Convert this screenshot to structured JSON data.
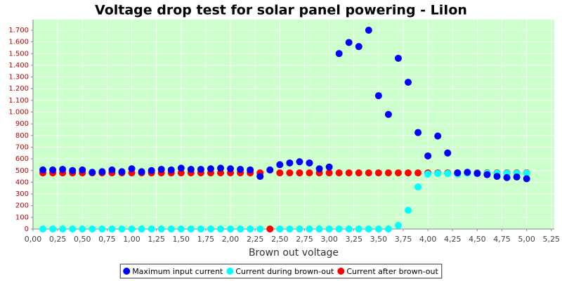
{
  "chart_data": {
    "type": "scatter",
    "title": "Voltage drop test for solar panel powering -  LiIon",
    "xlabel": "Brown out voltage",
    "x": [
      0.1,
      0.2,
      0.3,
      0.4,
      0.5,
      0.6,
      0.7,
      0.8,
      0.9,
      1.0,
      1.1,
      1.2,
      1.3,
      1.4,
      1.5,
      1.6,
      1.7,
      1.8,
      1.9,
      2.0,
      2.1,
      2.2,
      2.3,
      2.4,
      2.5,
      2.6,
      2.7,
      2.8,
      2.9,
      3.0,
      3.1,
      3.2,
      3.3,
      3.4,
      3.5,
      3.6,
      3.7,
      3.8,
      3.9,
      4.0,
      4.1,
      4.2,
      4.3,
      4.4,
      4.5,
      4.6,
      4.7,
      4.8,
      4.9,
      5.0
    ],
    "series": [
      {
        "name": "Maximum input current",
        "color": "#0000ff",
        "values": [
          505,
          505,
          510,
          500,
          505,
          485,
          490,
          505,
          490,
          515,
          490,
          500,
          510,
          505,
          520,
          510,
          510,
          515,
          520,
          515,
          510,
          505,
          450,
          505,
          550,
          565,
          575,
          565,
          515,
          530,
          1500,
          1595,
          1560,
          1700,
          1140,
          980,
          1460,
          1255,
          825,
          625,
          795,
          650,
          480,
          485,
          475,
          465,
          450,
          440,
          445,
          430
        ]
      },
      {
        "name": "Current during brown-out",
        "color": "#00ffff",
        "values": [
          0,
          0,
          0,
          0,
          0,
          0,
          0,
          0,
          0,
          0,
          0,
          0,
          0,
          0,
          0,
          0,
          0,
          0,
          0,
          0,
          0,
          0,
          0,
          null,
          0,
          0,
          0,
          0,
          0,
          0,
          0,
          0,
          0,
          0,
          0,
          0,
          30,
          160,
          360,
          470,
          475,
          475,
          470,
          477,
          477,
          477,
          477,
          477,
          477,
          477
        ]
      },
      {
        "name": "Current after brown-out",
        "color": "#ff0000",
        "values": [
          480,
          480,
          480,
          480,
          480,
          480,
          480,
          480,
          480,
          480,
          480,
          480,
          480,
          480,
          480,
          480,
          480,
          480,
          480,
          480,
          480,
          480,
          480,
          0,
          480,
          480,
          480,
          480,
          480,
          480,
          480,
          480,
          480,
          480,
          480,
          480,
          480,
          480,
          480,
          480,
          480,
          480,
          480,
          480,
          480,
          480,
          480,
          480,
          480,
          480
        ]
      }
    ],
    "xlim": [
      0,
      5.28
    ],
    "ylim": [
      0,
      1790
    ],
    "xticks": [
      {
        "value": 0,
        "label": "0,00"
      },
      {
        "value": 0.25,
        "label": "0,25"
      },
      {
        "value": 0.5,
        "label": "0,50"
      },
      {
        "value": 0.75,
        "label": "0,75"
      },
      {
        "value": 1,
        "label": "1,00"
      },
      {
        "value": 1.25,
        "label": "1,25"
      },
      {
        "value": 1.5,
        "label": "1,50"
      },
      {
        "value": 1.75,
        "label": "1,75"
      },
      {
        "value": 2,
        "label": "2,00"
      },
      {
        "value": 2.25,
        "label": "2,25"
      },
      {
        "value": 2.5,
        "label": "2,50"
      },
      {
        "value": 2.75,
        "label": "2,75"
      },
      {
        "value": 3,
        "label": "3,00"
      },
      {
        "value": 3.25,
        "label": "3,25"
      },
      {
        "value": 3.5,
        "label": "3,50"
      },
      {
        "value": 3.75,
        "label": "3,75"
      },
      {
        "value": 4,
        "label": "4,00"
      },
      {
        "value": 4.25,
        "label": "4,25"
      },
      {
        "value": 4.5,
        "label": "4,50"
      },
      {
        "value": 4.75,
        "label": "4,75"
      },
      {
        "value": 5,
        "label": "5,00"
      },
      {
        "value": 5.25,
        "label": "5,25"
      }
    ],
    "yticks": [
      0,
      100,
      200,
      300,
      400,
      500,
      600,
      700,
      800,
      900,
      {
        "value": 1000,
        "label": "1.000"
      },
      {
        "value": 1100,
        "label": "1.100"
      },
      {
        "value": 1200,
        "label": "1.200"
      },
      {
        "value": 1300,
        "label": "1.300"
      },
      {
        "value": 1400,
        "label": "1.400"
      },
      {
        "value": 1500,
        "label": "1.500"
      },
      {
        "value": 1600,
        "label": "1.600"
      },
      {
        "value": 1700,
        "label": "1.700"
      }
    ],
    "grid": true,
    "legend": "bottom"
  }
}
